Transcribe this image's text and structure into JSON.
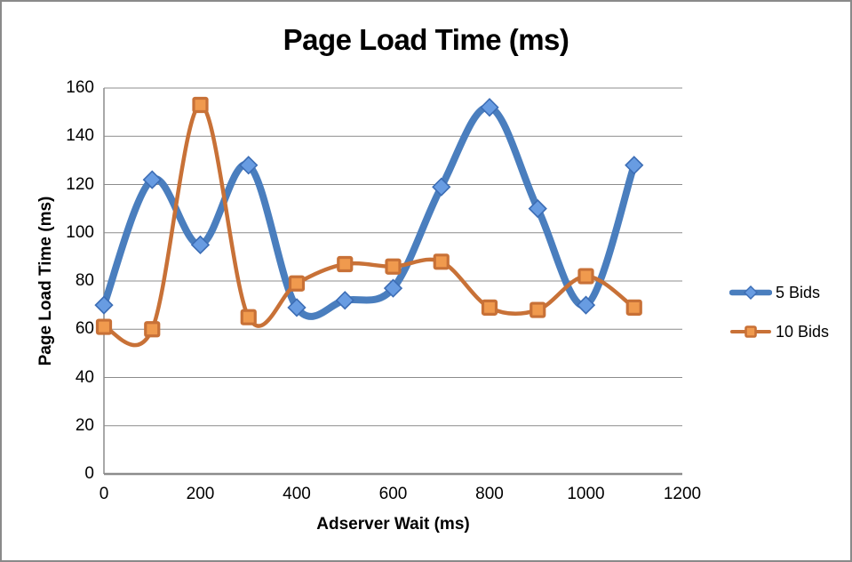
{
  "frame": {
    "border_color": "#8A8A8A",
    "background": "#FFFFFF"
  },
  "chart_data": {
    "type": "line",
    "title": "Page Load Time (ms)",
    "xlabel": "Adserver Wait (ms)",
    "ylabel": "Page Load Time (ms)",
    "x": [
      0,
      100,
      200,
      300,
      400,
      500,
      600,
      700,
      800,
      900,
      1000,
      1100
    ],
    "series": [
      {
        "name": "5 Bids",
        "values": [
          70,
          122,
          95,
          128,
          69,
          72,
          77,
          119,
          152,
          110,
          70,
          128
        ],
        "line_color": "#4A7EBE",
        "marker": "diamond",
        "marker_fill": "#689CE2",
        "marker_stroke": "#3C6DB5"
      },
      {
        "name": "10 Bids",
        "values": [
          61,
          60,
          153,
          65,
          79,
          87,
          86,
          88,
          69,
          68,
          82,
          69
        ],
        "line_color": "#C87137",
        "marker": "square",
        "marker_fill": "#F09A4E",
        "marker_stroke": "#C87137"
      }
    ],
    "xlim": [
      0,
      1200
    ],
    "ylim": [
      0,
      160
    ],
    "x_ticks": [
      0,
      200,
      400,
      600,
      800,
      1000,
      1200
    ],
    "y_ticks": [
      0,
      20,
      40,
      60,
      80,
      100,
      120,
      140,
      160
    ],
    "grid": "horizontal-only",
    "grid_color": "#8C8C8C",
    "axis_color": "#8C8C8C",
    "smoothed": true,
    "legend_position": "right"
  }
}
